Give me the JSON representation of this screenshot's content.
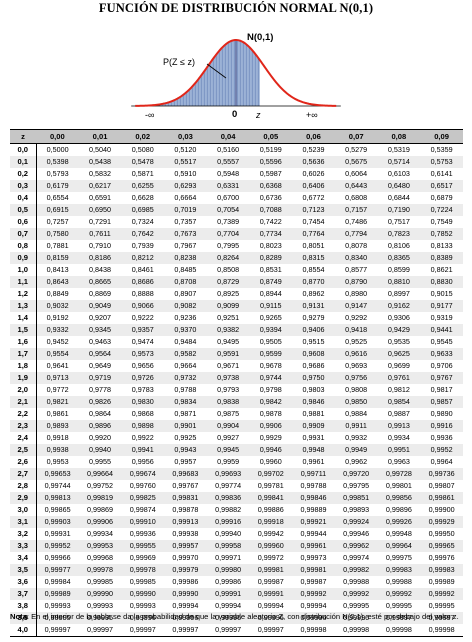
{
  "title": "FUNCIÓN DE DISTRIBUCIÓN NORMAL N(0,1)",
  "figure": {
    "dist_label": "N(0,1)",
    "area_label": "P(Z ≤ z)",
    "neg_inf": "-∞",
    "zero": "0",
    "z": "z",
    "pos_inf": "+∞",
    "colors": {
      "curve": "#e0261a",
      "area": "#9cb2d6",
      "area_lines": "#5b78b0"
    }
  },
  "table": {
    "corner": "z",
    "columns": [
      "0,00",
      "0,01",
      "0,02",
      "0,03",
      "0,04",
      "0,05",
      "0,06",
      "0,07",
      "0,08",
      "0,09"
    ],
    "rows": [
      {
        "z": "0,0",
        "v": [
          "0,5000",
          "0,5040",
          "0,5080",
          "0,5120",
          "0,5160",
          "0,5199",
          "0,5239",
          "0,5279",
          "0,5319",
          "0,5359"
        ]
      },
      {
        "z": "0,1",
        "v": [
          "0,5398",
          "0,5438",
          "0,5478",
          "0,5517",
          "0,5557",
          "0,5596",
          "0,5636",
          "0,5675",
          "0,5714",
          "0,5753"
        ]
      },
      {
        "z": "0,2",
        "v": [
          "0,5793",
          "0,5832",
          "0,5871",
          "0,5910",
          "0,5948",
          "0,5987",
          "0,6026",
          "0,6064",
          "0,6103",
          "0,6141"
        ]
      },
      {
        "z": "0,3",
        "v": [
          "0,6179",
          "0,6217",
          "0,6255",
          "0,6293",
          "0,6331",
          "0,6368",
          "0,6406",
          "0,6443",
          "0,6480",
          "0,6517"
        ]
      },
      {
        "z": "0,4",
        "v": [
          "0,6554",
          "0,6591",
          "0,6628",
          "0,6664",
          "0,6700",
          "0,6736",
          "0,6772",
          "0,6808",
          "0,6844",
          "0,6879"
        ]
      },
      {
        "z": "0,5",
        "v": [
          "0,6915",
          "0,6950",
          "0,6985",
          "0,7019",
          "0,7054",
          "0,7088",
          "0,7123",
          "0,7157",
          "0,7190",
          "0,7224"
        ]
      },
      {
        "z": "0,6",
        "v": [
          "0,7257",
          "0,7291",
          "0,7324",
          "0,7357",
          "0,7389",
          "0,7422",
          "0,7454",
          "0,7486",
          "0,7517",
          "0,7549"
        ]
      },
      {
        "z": "0,7",
        "v": [
          "0,7580",
          "0,7611",
          "0,7642",
          "0,7673",
          "0,7704",
          "0,7734",
          "0,7764",
          "0,7794",
          "0,7823",
          "0,7852"
        ]
      },
      {
        "z": "0,8",
        "v": [
          "0,7881",
          "0,7910",
          "0,7939",
          "0,7967",
          "0,7995",
          "0,8023",
          "0,8051",
          "0,8078",
          "0,8106",
          "0,8133"
        ]
      },
      {
        "z": "0,9",
        "v": [
          "0,8159",
          "0,8186",
          "0,8212",
          "0,8238",
          "0,8264",
          "0,8289",
          "0,8315",
          "0,8340",
          "0,8365",
          "0,8389"
        ]
      },
      {
        "z": "1,0",
        "v": [
          "0,8413",
          "0,8438",
          "0,8461",
          "0,8485",
          "0,8508",
          "0,8531",
          "0,8554",
          "0,8577",
          "0,8599",
          "0,8621"
        ]
      },
      {
        "z": "1,1",
        "v": [
          "0,8643",
          "0,8665",
          "0,8686",
          "0,8708",
          "0,8729",
          "0,8749",
          "0,8770",
          "0,8790",
          "0,8810",
          "0,8830"
        ]
      },
      {
        "z": "1,2",
        "v": [
          "0,8849",
          "0,8869",
          "0,8888",
          "0,8907",
          "0,8925",
          "0,8944",
          "0,8962",
          "0,8980",
          "0,8997",
          "0,9015"
        ]
      },
      {
        "z": "1,3",
        "v": [
          "0,9032",
          "0,9049",
          "0,9066",
          "0,9082",
          "0,9099",
          "0,9115",
          "0,9131",
          "0,9147",
          "0,9162",
          "0,9177"
        ]
      },
      {
        "z": "1,4",
        "v": [
          "0,9192",
          "0,9207",
          "0,9222",
          "0,9236",
          "0,9251",
          "0,9265",
          "0,9279",
          "0,9292",
          "0,9306",
          "0,9319"
        ]
      },
      {
        "z": "1,5",
        "v": [
          "0,9332",
          "0,9345",
          "0,9357",
          "0,9370",
          "0,9382",
          "0,9394",
          "0,9406",
          "0,9418",
          "0,9429",
          "0,9441"
        ]
      },
      {
        "z": "1,6",
        "v": [
          "0,9452",
          "0,9463",
          "0,9474",
          "0,9484",
          "0,9495",
          "0,9505",
          "0,9515",
          "0,9525",
          "0,9535",
          "0,9545"
        ]
      },
      {
        "z": "1,7",
        "v": [
          "0,9554",
          "0,9564",
          "0,9573",
          "0,9582",
          "0,9591",
          "0,9599",
          "0,9608",
          "0,9616",
          "0,9625",
          "0,9633"
        ]
      },
      {
        "z": "1,8",
        "v": [
          "0,9641",
          "0,9649",
          "0,9656",
          "0,9664",
          "0,9671",
          "0,9678",
          "0,9686",
          "0,9693",
          "0,9699",
          "0,9706"
        ]
      },
      {
        "z": "1,9",
        "v": [
          "0,9713",
          "0,9719",
          "0,9726",
          "0,9732",
          "0,9738",
          "0,9744",
          "0,9750",
          "0,9756",
          "0,9761",
          "0,9767"
        ]
      },
      {
        "z": "2,0",
        "v": [
          "0,9772",
          "0,9778",
          "0,9783",
          "0,9788",
          "0,9793",
          "0,9798",
          "0,9803",
          "0,9808",
          "0,9812",
          "0,9817"
        ]
      },
      {
        "z": "2,1",
        "v": [
          "0,9821",
          "0,9826",
          "0,9830",
          "0,9834",
          "0,9838",
          "0,9842",
          "0,9846",
          "0,9850",
          "0,9854",
          "0,9857"
        ]
      },
      {
        "z": "2,2",
        "v": [
          "0,9861",
          "0,9864",
          "0,9868",
          "0,9871",
          "0,9875",
          "0,9878",
          "0,9881",
          "0,9884",
          "0,9887",
          "0,9890"
        ]
      },
      {
        "z": "2,3",
        "v": [
          "0,9893",
          "0,9896",
          "0,9898",
          "0,9901",
          "0,9904",
          "0,9906",
          "0,9909",
          "0,9911",
          "0,9913",
          "0,9916"
        ]
      },
      {
        "z": "2,4",
        "v": [
          "0,9918",
          "0,9920",
          "0,9922",
          "0,9925",
          "0,9927",
          "0,9929",
          "0,9931",
          "0,9932",
          "0,9934",
          "0,9936"
        ]
      },
      {
        "z": "2,5",
        "v": [
          "0,9938",
          "0,9940",
          "0,9941",
          "0,9943",
          "0,9945",
          "0,9946",
          "0,9948",
          "0,9949",
          "0,9951",
          "0,9952"
        ]
      },
      {
        "z": "2,6",
        "v": [
          "0,9953",
          "0,9955",
          "0,9956",
          "0,9957",
          "0,9959",
          "0,9960",
          "0,9961",
          "0,9962",
          "0,9963",
          "0,9964"
        ]
      },
      {
        "z": "2,7",
        "v": [
          "0,99653",
          "0,99664",
          "0,99674",
          "0,99683",
          "0,99693",
          "0,99702",
          "0,99711",
          "0,99720",
          "0,99728",
          "0,99736"
        ]
      },
      {
        "z": "2,8",
        "v": [
          "0,99744",
          "0,99752",
          "0,99760",
          "0,99767",
          "0,99774",
          "0,99781",
          "0,99788",
          "0,99795",
          "0,99801",
          "0,99807"
        ]
      },
      {
        "z": "2,9",
        "v": [
          "0,99813",
          "0,99819",
          "0,99825",
          "0,99831",
          "0,99836",
          "0,99841",
          "0,99846",
          "0,99851",
          "0,99856",
          "0,99861"
        ]
      },
      {
        "z": "3,0",
        "v": [
          "0,99865",
          "0,99869",
          "0,99874",
          "0,99878",
          "0,99882",
          "0,99886",
          "0,99889",
          "0,99893",
          "0,99896",
          "0,99900"
        ]
      },
      {
        "z": "3,1",
        "v": [
          "0,99903",
          "0,99906",
          "0,99910",
          "0,99913",
          "0,99916",
          "0,99918",
          "0,99921",
          "0,99924",
          "0,99926",
          "0,99929"
        ]
      },
      {
        "z": "3,2",
        "v": [
          "0,99931",
          "0,99934",
          "0,99936",
          "0,99938",
          "0,99940",
          "0,99942",
          "0,99944",
          "0,99946",
          "0,99948",
          "0,99950"
        ]
      },
      {
        "z": "3,3",
        "v": [
          "0,99952",
          "0,99953",
          "0,99955",
          "0,99957",
          "0,99958",
          "0,99960",
          "0,99961",
          "0,99962",
          "0,99964",
          "0,99965"
        ]
      },
      {
        "z": "3,4",
        "v": [
          "0,99966",
          "0,99968",
          "0,99969",
          "0,99970",
          "0,99971",
          "0,99972",
          "0,99973",
          "0,99974",
          "0,99975",
          "0,99976"
        ]
      },
      {
        "z": "3,5",
        "v": [
          "0,99977",
          "0,99978",
          "0,99978",
          "0,99979",
          "0,99980",
          "0,99981",
          "0,99981",
          "0,99982",
          "0,99983",
          "0,99983"
        ]
      },
      {
        "z": "3,6",
        "v": [
          "0,99984",
          "0,99985",
          "0,99985",
          "0,99986",
          "0,99986",
          "0,99987",
          "0,99987",
          "0,99988",
          "0,99988",
          "0,99989"
        ]
      },
      {
        "z": "3,7",
        "v": [
          "0,99989",
          "0,99990",
          "0,99990",
          "0,99990",
          "0,99991",
          "0,99991",
          "0,99992",
          "0,99992",
          "0,99992",
          "0,99992"
        ]
      },
      {
        "z": "3,8",
        "v": [
          "0,99993",
          "0,99993",
          "0,99993",
          "0,99994",
          "0,99994",
          "0,99994",
          "0,99994",
          "0,99995",
          "0,99995",
          "0,99995"
        ]
      },
      {
        "z": "3,9",
        "v": [
          "0,99995",
          "0,99995",
          "0,99996",
          "0,99996",
          "0,99996",
          "0,99996",
          "0,99996",
          "0,99996",
          "0,99997",
          "0,99997"
        ]
      },
      {
        "z": "4,0",
        "v": [
          "0,99997",
          "0,99997",
          "0,99997",
          "0,99997",
          "0,99997",
          "0,99997",
          "0,99998",
          "0,99998",
          "0,99998",
          "0,99998"
        ]
      }
    ]
  },
  "note": {
    "label": "Nota",
    "text": ": En el interior de la tabla se da la probabilidad de que la variable aleatoria Z, con distribución N(0,1), esté por debajo del valor z."
  }
}
